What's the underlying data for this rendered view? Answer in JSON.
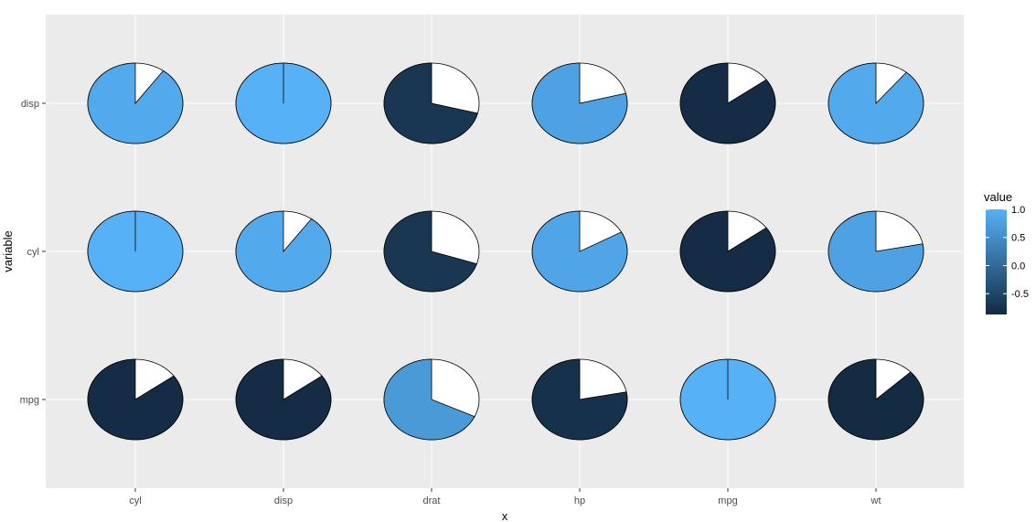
{
  "chart_data": {
    "type": "pie-grid",
    "xlabel": "x",
    "ylabel": "variable",
    "x_categories": [
      "cyl",
      "disp",
      "drat",
      "hp",
      "mpg",
      "wt"
    ],
    "y_categories": [
      "mpg",
      "cyl",
      "disp"
    ],
    "cells": [
      {
        "x": "cyl",
        "y": "disp",
        "value": 0.9
      },
      {
        "x": "disp",
        "y": "disp",
        "value": 1.0
      },
      {
        "x": "drat",
        "y": "disp",
        "value": -0.71
      },
      {
        "x": "hp",
        "y": "disp",
        "value": 0.79
      },
      {
        "x": "mpg",
        "y": "disp",
        "value": -0.85
      },
      {
        "x": "wt",
        "y": "disp",
        "value": 0.89
      },
      {
        "x": "cyl",
        "y": "cyl",
        "value": 1.0
      },
      {
        "x": "disp",
        "y": "cyl",
        "value": 0.9
      },
      {
        "x": "drat",
        "y": "cyl",
        "value": -0.7
      },
      {
        "x": "hp",
        "y": "cyl",
        "value": 0.83
      },
      {
        "x": "mpg",
        "y": "cyl",
        "value": -0.85
      },
      {
        "x": "wt",
        "y": "cyl",
        "value": 0.78
      },
      {
        "x": "cyl",
        "y": "mpg",
        "value": -0.85
      },
      {
        "x": "disp",
        "y": "mpg",
        "value": -0.85
      },
      {
        "x": "drat",
        "y": "mpg",
        "value": 0.68
      },
      {
        "x": "hp",
        "y": "mpg",
        "value": -0.78
      },
      {
        "x": "mpg",
        "y": "mpg",
        "value": 1.0
      },
      {
        "x": "wt",
        "y": "mpg",
        "value": -0.87
      }
    ],
    "legend": {
      "title": "value",
      "breaks": [
        "1.0",
        "0.5",
        "0.0",
        "-0.5"
      ],
      "break_values": [
        1.0,
        0.5,
        0.0,
        -0.5
      ],
      "limits": [
        -0.87,
        1.0
      ],
      "low_color": "#132B43",
      "high_color": "#56B1F7",
      "placement": "right"
    },
    "panel_background": "#EBEBEB",
    "grid": true
  }
}
